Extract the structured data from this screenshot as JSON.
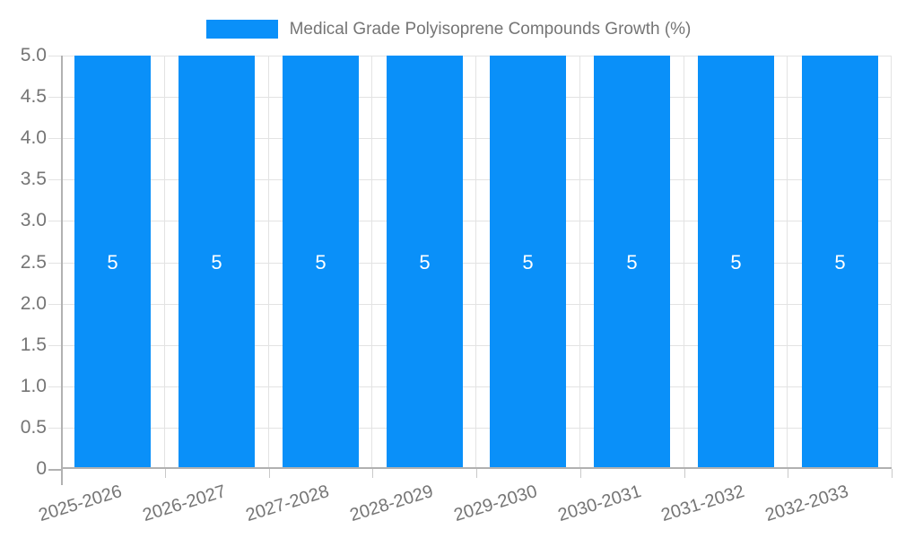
{
  "chart_data": {
    "type": "bar",
    "title": "Medical Grade Polyisoprene Compounds Growth (%)",
    "categories": [
      "2025-2026",
      "2026-2027",
      "2027-2028",
      "2028-2029",
      "2029-2030",
      "2030-2031",
      "2031-2032",
      "2032-2033"
    ],
    "values": [
      5,
      5,
      5,
      5,
      5,
      5,
      5,
      5
    ],
    "bar_labels": [
      "5",
      "5",
      "5",
      "5",
      "5",
      "5",
      "5",
      "5"
    ],
    "xlabel": "",
    "ylabel": "",
    "ylim": [
      0,
      5
    ],
    "ytick_step": 0.5,
    "ytick_labels": [
      "5.0",
      "4.5",
      "4.0",
      "3.5",
      "3.0",
      "2.5",
      "2.0",
      "1.5",
      "1.0",
      "0.5",
      "0"
    ],
    "grid": true,
    "legend": {
      "position": "top-center",
      "entries": [
        "Medical Grade Polyisoprene Compounds Growth (%)"
      ]
    }
  },
  "colors": {
    "bar": "#0a90f9",
    "text": "#757575",
    "grid": "#e3e3e3",
    "axis": "#b1b1b1",
    "tick": "#c9c9c9",
    "value_text": "#ffffff",
    "background": "#ffffff"
  }
}
